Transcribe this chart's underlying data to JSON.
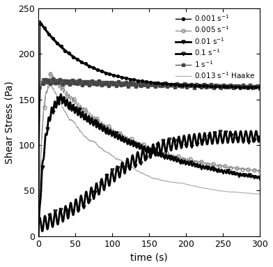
{
  "xlabel": "time (s)",
  "ylabel": "Shear Stress (Pa)",
  "xlim": [
    0,
    300
  ],
  "ylim": [
    0,
    250
  ],
  "xticks": [
    0,
    50,
    100,
    150,
    200,
    250,
    300
  ],
  "yticks": [
    0,
    50,
    100,
    150,
    200,
    250
  ],
  "figsize": [
    3.92,
    3.83
  ],
  "dpi": 100,
  "curves": {
    "c1_0001": {
      "label": "0.001 s$^{-1}$",
      "color": "#000000",
      "lw": 1.2,
      "marker": "o",
      "ms": 2.8,
      "mfc": "black",
      "mec": "black",
      "peak": 235,
      "peak_t": 2,
      "steady": 163,
      "tau_rise": 1.5,
      "tau_fall": 60,
      "n_markers": 55,
      "noise_amp": 1.5,
      "noise_freq": 4.0
    },
    "c2_0005": {
      "label": "0.005 s$^{-1}$",
      "color": "#888888",
      "lw": 0.9,
      "marker": "o",
      "ms": 3.5,
      "mfc": "none",
      "mec": "#888888",
      "peak": 178,
      "peak_t": 15,
      "steady": 63,
      "tau_rise": 5,
      "tau_fall": 110,
      "n_markers": 38,
      "noise_amp": 3.5,
      "noise_freq": 2.0
    },
    "c3_001": {
      "label": "0.01 s$^{-1}$",
      "color": "#000000",
      "lw": 2.0,
      "marker": "v",
      "ms": 3.5,
      "mfc": "black",
      "mec": "black",
      "peak": 153,
      "peak_t": 28,
      "steady": 47,
      "tau_rise": 8,
      "tau_fall": 150,
      "n_markers": 42,
      "noise_amp": 5.0,
      "noise_freq": 1.5
    },
    "c4_01": {
      "label": "0.1 s$^{-1}$",
      "color": "#000000",
      "lw": 2.0,
      "marker": "v",
      "ms": 3.5,
      "mfc": "none",
      "mec": "#000000",
      "s_mid": 85,
      "s_scale": 40,
      "s_steady": 110,
      "n_markers": 38,
      "noise_amp": 8.0,
      "noise_freq": 0.9
    },
    "c5_1": {
      "label": "1 s$^{-1}$",
      "color": "#555555",
      "lw": 1.0,
      "marker": "s",
      "ms": 2.5,
      "mfc": "#444444",
      "mec": "#444444",
      "peak": 170,
      "peak_t": 5,
      "steady": 160,
      "tau_rise": 1.0,
      "tau_fall": 300,
      "n_markers": 90,
      "noise_amp": 3.0,
      "noise_freq": 5.0
    },
    "c6_haake": {
      "label": "0.013 s$^{-1}$ Haake",
      "color": "#aaaaaa",
      "lw": 0.8,
      "peak": 170,
      "peak_t": 15,
      "steady": 42,
      "tau_rise": 4,
      "tau_fall": 90,
      "noise_amp": 3.0
    }
  }
}
